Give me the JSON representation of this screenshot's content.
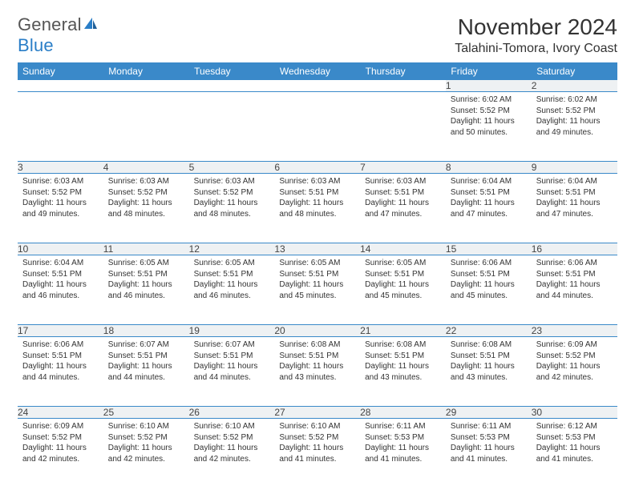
{
  "logo": {
    "text1": "General",
    "text2": "Blue"
  },
  "title": "November 2024",
  "location": "Talahini-Tomora, Ivory Coast",
  "colors": {
    "header_bg": "#3a89c9",
    "header_text": "#ffffff",
    "daynum_bg": "#eef1f3",
    "border": "#3a89c9",
    "logo_blue": "#2a7ec7"
  },
  "day_headers": [
    "Sunday",
    "Monday",
    "Tuesday",
    "Wednesday",
    "Thursday",
    "Friday",
    "Saturday"
  ],
  "weeks": [
    [
      null,
      null,
      null,
      null,
      null,
      {
        "d": "1",
        "sr": "6:02 AM",
        "ss": "5:52 PM",
        "dl": "11 hours and 50 minutes."
      },
      {
        "d": "2",
        "sr": "6:02 AM",
        "ss": "5:52 PM",
        "dl": "11 hours and 49 minutes."
      }
    ],
    [
      {
        "d": "3",
        "sr": "6:03 AM",
        "ss": "5:52 PM",
        "dl": "11 hours and 49 minutes."
      },
      {
        "d": "4",
        "sr": "6:03 AM",
        "ss": "5:52 PM",
        "dl": "11 hours and 48 minutes."
      },
      {
        "d": "5",
        "sr": "6:03 AM",
        "ss": "5:52 PM",
        "dl": "11 hours and 48 minutes."
      },
      {
        "d": "6",
        "sr": "6:03 AM",
        "ss": "5:51 PM",
        "dl": "11 hours and 48 minutes."
      },
      {
        "d": "7",
        "sr": "6:03 AM",
        "ss": "5:51 PM",
        "dl": "11 hours and 47 minutes."
      },
      {
        "d": "8",
        "sr": "6:04 AM",
        "ss": "5:51 PM",
        "dl": "11 hours and 47 minutes."
      },
      {
        "d": "9",
        "sr": "6:04 AM",
        "ss": "5:51 PM",
        "dl": "11 hours and 47 minutes."
      }
    ],
    [
      {
        "d": "10",
        "sr": "6:04 AM",
        "ss": "5:51 PM",
        "dl": "11 hours and 46 minutes."
      },
      {
        "d": "11",
        "sr": "6:05 AM",
        "ss": "5:51 PM",
        "dl": "11 hours and 46 minutes."
      },
      {
        "d": "12",
        "sr": "6:05 AM",
        "ss": "5:51 PM",
        "dl": "11 hours and 46 minutes."
      },
      {
        "d": "13",
        "sr": "6:05 AM",
        "ss": "5:51 PM",
        "dl": "11 hours and 45 minutes."
      },
      {
        "d": "14",
        "sr": "6:05 AM",
        "ss": "5:51 PM",
        "dl": "11 hours and 45 minutes."
      },
      {
        "d": "15",
        "sr": "6:06 AM",
        "ss": "5:51 PM",
        "dl": "11 hours and 45 minutes."
      },
      {
        "d": "16",
        "sr": "6:06 AM",
        "ss": "5:51 PM",
        "dl": "11 hours and 44 minutes."
      }
    ],
    [
      {
        "d": "17",
        "sr": "6:06 AM",
        "ss": "5:51 PM",
        "dl": "11 hours and 44 minutes."
      },
      {
        "d": "18",
        "sr": "6:07 AM",
        "ss": "5:51 PM",
        "dl": "11 hours and 44 minutes."
      },
      {
        "d": "19",
        "sr": "6:07 AM",
        "ss": "5:51 PM",
        "dl": "11 hours and 44 minutes."
      },
      {
        "d": "20",
        "sr": "6:08 AM",
        "ss": "5:51 PM",
        "dl": "11 hours and 43 minutes."
      },
      {
        "d": "21",
        "sr": "6:08 AM",
        "ss": "5:51 PM",
        "dl": "11 hours and 43 minutes."
      },
      {
        "d": "22",
        "sr": "6:08 AM",
        "ss": "5:51 PM",
        "dl": "11 hours and 43 minutes."
      },
      {
        "d": "23",
        "sr": "6:09 AM",
        "ss": "5:52 PM",
        "dl": "11 hours and 42 minutes."
      }
    ],
    [
      {
        "d": "24",
        "sr": "6:09 AM",
        "ss": "5:52 PM",
        "dl": "11 hours and 42 minutes."
      },
      {
        "d": "25",
        "sr": "6:10 AM",
        "ss": "5:52 PM",
        "dl": "11 hours and 42 minutes."
      },
      {
        "d": "26",
        "sr": "6:10 AM",
        "ss": "5:52 PM",
        "dl": "11 hours and 42 minutes."
      },
      {
        "d": "27",
        "sr": "6:10 AM",
        "ss": "5:52 PM",
        "dl": "11 hours and 41 minutes."
      },
      {
        "d": "28",
        "sr": "6:11 AM",
        "ss": "5:53 PM",
        "dl": "11 hours and 41 minutes."
      },
      {
        "d": "29",
        "sr": "6:11 AM",
        "ss": "5:53 PM",
        "dl": "11 hours and 41 minutes."
      },
      {
        "d": "30",
        "sr": "6:12 AM",
        "ss": "5:53 PM",
        "dl": "11 hours and 41 minutes."
      }
    ]
  ],
  "labels": {
    "sunrise": "Sunrise: ",
    "sunset": "Sunset: ",
    "daylight": "Daylight: "
  }
}
